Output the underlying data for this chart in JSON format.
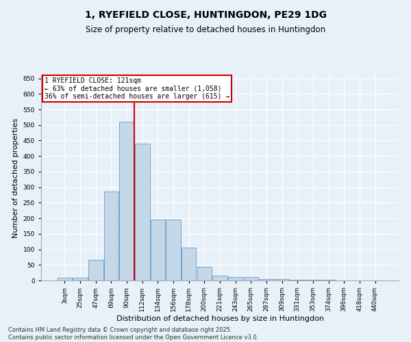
{
  "title_line1": "1, RYEFIELD CLOSE, HUNTINGDON, PE29 1DG",
  "title_line2": "Size of property relative to detached houses in Huntingdon",
  "xlabel": "Distribution of detached houses by size in Huntingdon",
  "ylabel": "Number of detached properties",
  "bar_labels": [
    "3sqm",
    "25sqm",
    "47sqm",
    "69sqm",
    "90sqm",
    "112sqm",
    "134sqm",
    "156sqm",
    "178sqm",
    "200sqm",
    "221sqm",
    "243sqm",
    "265sqm",
    "287sqm",
    "309sqm",
    "331sqm",
    "353sqm",
    "374sqm",
    "396sqm",
    "418sqm",
    "440sqm"
  ],
  "bar_values": [
    8,
    8,
    65,
    285,
    510,
    440,
    195,
    195,
    105,
    45,
    15,
    10,
    10,
    5,
    4,
    2,
    2,
    2,
    1,
    1,
    1
  ],
  "bar_color": "#c5d8e8",
  "bar_edge_color": "#5b9bd5",
  "annotation_text_line1": "1 RYEFIELD CLOSE: 121sqm",
  "annotation_text_line2": "← 63% of detached houses are smaller (1,058)",
  "annotation_text_line3": "36% of semi-detached houses are larger (615) →",
  "annotation_box_color": "#ffffff",
  "annotation_box_edge": "#cc0000",
  "vertical_line_color": "#cc0000",
  "vertical_line_x": 4.5,
  "ylim": [
    0,
    660
  ],
  "yticks": [
    0,
    50,
    100,
    150,
    200,
    250,
    300,
    350,
    400,
    450,
    500,
    550,
    600,
    650
  ],
  "background_color": "#e8f0f8",
  "plot_background": "#e8f0f8",
  "grid_color": "#ffffff",
  "footnote_line1": "Contains HM Land Registry data © Crown copyright and database right 2025.",
  "footnote_line2": "Contains public sector information licensed under the Open Government Licence v3.0.",
  "title_fontsize": 10,
  "subtitle_fontsize": 8.5,
  "axis_label_fontsize": 8,
  "tick_fontsize": 6.5,
  "annotation_fontsize": 7,
  "footnote_fontsize": 6
}
